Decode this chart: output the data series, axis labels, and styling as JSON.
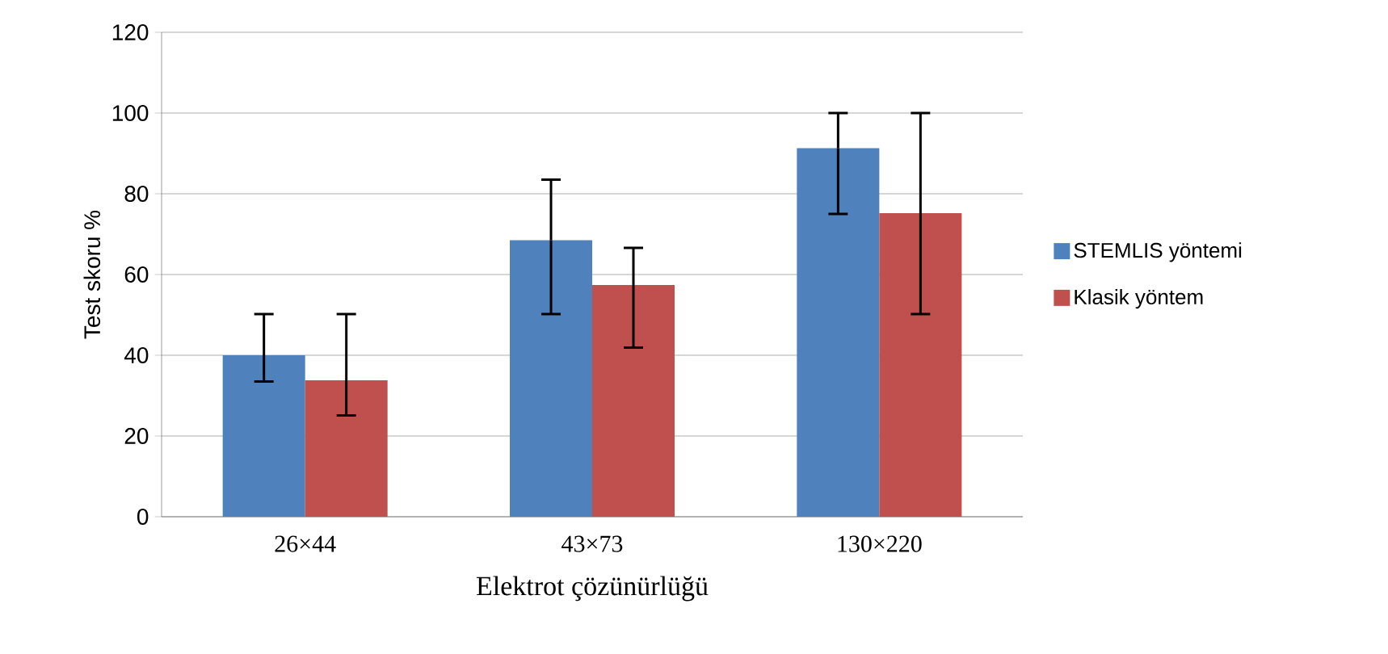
{
  "chart_data": {
    "type": "bar",
    "xlabel": "Elektrot çözünürlüğü",
    "ylabel": "Test skoru %",
    "categories": [
      "26×44",
      "43×73",
      "130×220"
    ],
    "series": [
      {
        "name": "STEMLIS yöntemi",
        "color": "#4f81bd",
        "values": [
          40,
          68.5,
          91.3
        ],
        "errors": [
          [
            33.5,
            50.2
          ],
          [
            50.2,
            83.5
          ],
          [
            75,
            100
          ]
        ]
      },
      {
        "name": "Klasik yöntem",
        "color": "#c0504d",
        "values": [
          33.8,
          57.4,
          75.2
        ],
        "errors": [
          [
            25.1,
            50.2
          ],
          [
            41.9,
            66.6
          ],
          [
            50.2,
            100
          ]
        ]
      }
    ],
    "ylim": [
      0,
      120
    ],
    "yticks": [
      0,
      20,
      40,
      60,
      80,
      100,
      120
    ],
    "grid": "y",
    "legend": "right"
  }
}
